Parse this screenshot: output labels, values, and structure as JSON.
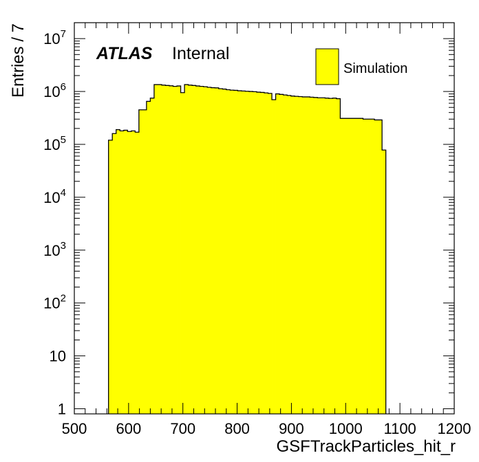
{
  "chart_data": {
    "type": "bar",
    "histogram": true,
    "xlabel": "GSFTrackParticles_hit_r",
    "ylabel": "Entries / 7",
    "xlim": [
      500,
      1200
    ],
    "ylim": [
      0.8,
      20000000
    ],
    "yscale": "log",
    "bin_width": 7,
    "x_ticks": [
      "500",
      "600",
      "700",
      "800",
      "900",
      "1000",
      "1100",
      "1200"
    ],
    "y_ticks": [
      {
        "base": "1",
        "exp": ""
      },
      {
        "base": "10",
        "exp": ""
      },
      {
        "base": "10",
        "exp": "2"
      },
      {
        "base": "10",
        "exp": "3"
      },
      {
        "base": "10",
        "exp": "4"
      },
      {
        "base": "10",
        "exp": "5"
      },
      {
        "base": "10",
        "exp": "6"
      },
      {
        "base": "10",
        "exp": "7"
      }
    ],
    "fill_color": "#ffff00",
    "line_color": "#000000",
    "series": [
      {
        "name": "Simulation",
        "x_start": [
          563,
          570,
          577,
          584,
          591,
          598,
          605,
          612,
          619,
          626,
          633,
          640,
          647,
          654,
          661,
          668,
          675,
          682,
          689,
          696,
          703,
          710,
          717,
          724,
          731,
          738,
          745,
          752,
          759,
          766,
          773,
          780,
          787,
          794,
          801,
          808,
          815,
          822,
          829,
          836,
          843,
          850,
          857,
          864,
          871,
          878,
          885,
          892,
          899,
          906,
          913,
          920,
          927,
          934,
          941,
          948,
          955,
          962,
          969,
          976,
          983,
          990,
          997,
          1004,
          1011,
          1018,
          1025,
          1032,
          1039,
          1046,
          1053,
          1060,
          1067
        ],
        "values": [
          120000,
          160000,
          190000,
          180000,
          185000,
          175000,
          180000,
          170000,
          450000,
          450000,
          650000,
          750000,
          1350000,
          1350000,
          1320000,
          1300000,
          1280000,
          1250000,
          1270000,
          950000,
          1350000,
          1320000,
          1300000,
          1270000,
          1250000,
          1230000,
          1200000,
          1180000,
          1170000,
          1130000,
          1110000,
          1080000,
          1060000,
          1050000,
          1030000,
          1020000,
          1010000,
          1000000,
          990000,
          970000,
          960000,
          940000,
          920000,
          700000,
          900000,
          880000,
          860000,
          840000,
          820000,
          810000,
          800000,
          790000,
          790000,
          780000,
          770000,
          760000,
          760000,
          750000,
          740000,
          750000,
          730000,
          310000,
          310000,
          310000,
          310000,
          310000,
          310000,
          300000,
          300000,
          300000,
          290000,
          290000,
          78000
        ]
      }
    ]
  },
  "labels": {
    "atlas": "ATLAS",
    "internal": "Internal",
    "legend_entry": "Simulation"
  }
}
